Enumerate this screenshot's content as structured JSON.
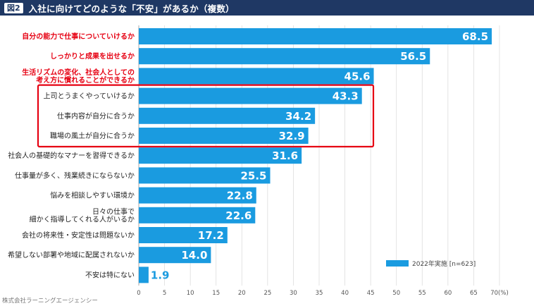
{
  "header": {
    "figure_badge": "図2",
    "title": "入社に向けてどのような「不安」があるか（複数）"
  },
  "chart_data": {
    "type": "bar",
    "orientation": "horizontal",
    "title": "入社に向けてどのような「不安」があるか（複数）",
    "categories": [
      "自分の能力で仕事についていけるか",
      "しっかりと成果を出せるか",
      "生活リズムの変化、社会人としての考え方に慣れることができるか",
      "上司とうまくやっていけるか",
      "仕事内容が自分に合うか",
      "職場の風土が自分に合うか",
      "社会人の基礎的なマナーを習得できるか",
      "仕事量が多く、残業続きにならないか",
      "悩みを相談しやすい環境か",
      "日々の仕事で細かく指導してくれる人がいるか",
      "会社の将来性・安定性は問題ないか",
      "希望しない部署や地域に配属されないか",
      "不安は特にない"
    ],
    "category_lines": [
      [
        "自分の能力で仕事についていけるか"
      ],
      [
        "しっかりと成果を出せるか"
      ],
      [
        "生活リズムの変化、社会人としての",
        "考え方に慣れることができるか"
      ],
      [
        "上司とうまくやっていけるか"
      ],
      [
        "仕事内容が自分に合うか"
      ],
      [
        "職場の風土が自分に合うか"
      ],
      [
        "社会人の基礎的なマナーを習得できるか"
      ],
      [
        "仕事量が多く、残業続きにならないか"
      ],
      [
        "悩みを相談しやすい環境か"
      ],
      [
        "日々の仕事で",
        "細かく指導してくれる人がいるか"
      ],
      [
        "会社の将来性・安定性は問題ないか"
      ],
      [
        "希望しない部署や地域に配属されないか"
      ],
      [
        "不安は特にない"
      ]
    ],
    "highlighted_red": [
      0,
      1,
      2
    ],
    "boxed_group": [
      3,
      4,
      5
    ],
    "series": [
      {
        "name": "2022年実施 [n=623]",
        "values": [
          68.5,
          56.5,
          45.6,
          43.3,
          34.2,
          32.9,
          31.6,
          25.5,
          22.8,
          22.6,
          17.2,
          14.0,
          1.9
        ]
      }
    ],
    "value_labels": [
      "68.5",
      "56.5",
      "45.6",
      "43.3",
      "34.2",
      "32.9",
      "31.6",
      "25.5",
      "22.8",
      "22.6",
      "17.2",
      "14.0",
      "1.9"
    ],
    "xlim": [
      0,
      70
    ],
    "xticks": [
      0,
      5,
      10,
      15,
      20,
      25,
      30,
      35,
      40,
      45,
      50,
      55,
      60,
      65,
      70
    ],
    "xtick_labels": [
      "0",
      "5",
      "10",
      "15",
      "20",
      "25",
      "30",
      "35",
      "40",
      "45",
      "50",
      "55",
      "60",
      "65",
      "70(%)"
    ],
    "legend": {
      "label": "2022年実施 [n=623]",
      "position": "bottom-right"
    },
    "colors": {
      "bar": "#1a9be0",
      "red_label": "#e60012",
      "box": "#e60012",
      "grid": "#dddddd"
    }
  },
  "footer": {
    "source": "株式会社ラーニングエージェンシー"
  }
}
